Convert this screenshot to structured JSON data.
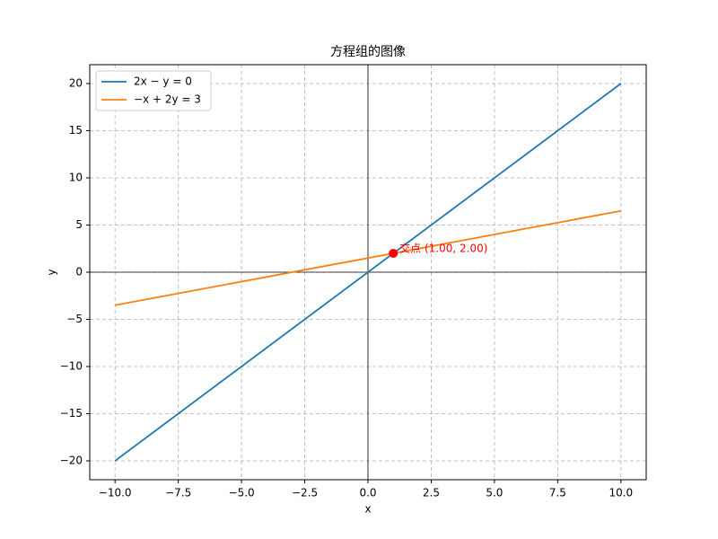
{
  "chart_data": {
    "type": "line",
    "title": "方程组的图像",
    "xlabel": "x",
    "ylabel": "y",
    "x": [
      -10,
      10
    ],
    "series": [
      {
        "name": "2x − y = 0",
        "color": "#1f77b4",
        "values": [
          -20,
          20
        ]
      },
      {
        "name": "−x + 2y = 3",
        "color": "#ff7f0e",
        "values": [
          -3.5,
          6.5
        ]
      }
    ],
    "points": [
      {
        "x": 1,
        "y": 2,
        "color": "#ff0000",
        "label": "交点 (1.00, 2.00)"
      }
    ],
    "hlines": [
      0
    ],
    "vlines": [
      0
    ],
    "xlim": [
      -11,
      11
    ],
    "ylim": [
      -22,
      22
    ],
    "xticks": [
      {
        "value": -10,
        "label": "−10.0"
      },
      {
        "value": -7.5,
        "label": "−7.5"
      },
      {
        "value": -5,
        "label": "−5.0"
      },
      {
        "value": -2.5,
        "label": "−2.5"
      },
      {
        "value": 0,
        "label": "0.0"
      },
      {
        "value": 2.5,
        "label": "2.5"
      },
      {
        "value": 5,
        "label": "5.0"
      },
      {
        "value": 7.5,
        "label": "7.5"
      },
      {
        "value": 10,
        "label": "10.0"
      }
    ],
    "yticks": [
      {
        "value": -20,
        "label": "−20"
      },
      {
        "value": -15,
        "label": "−15"
      },
      {
        "value": -10,
        "label": "−10"
      },
      {
        "value": -5,
        "label": "−5"
      },
      0,
      5,
      10,
      15,
      20
    ],
    "grid": true,
    "legend": "upper left"
  }
}
